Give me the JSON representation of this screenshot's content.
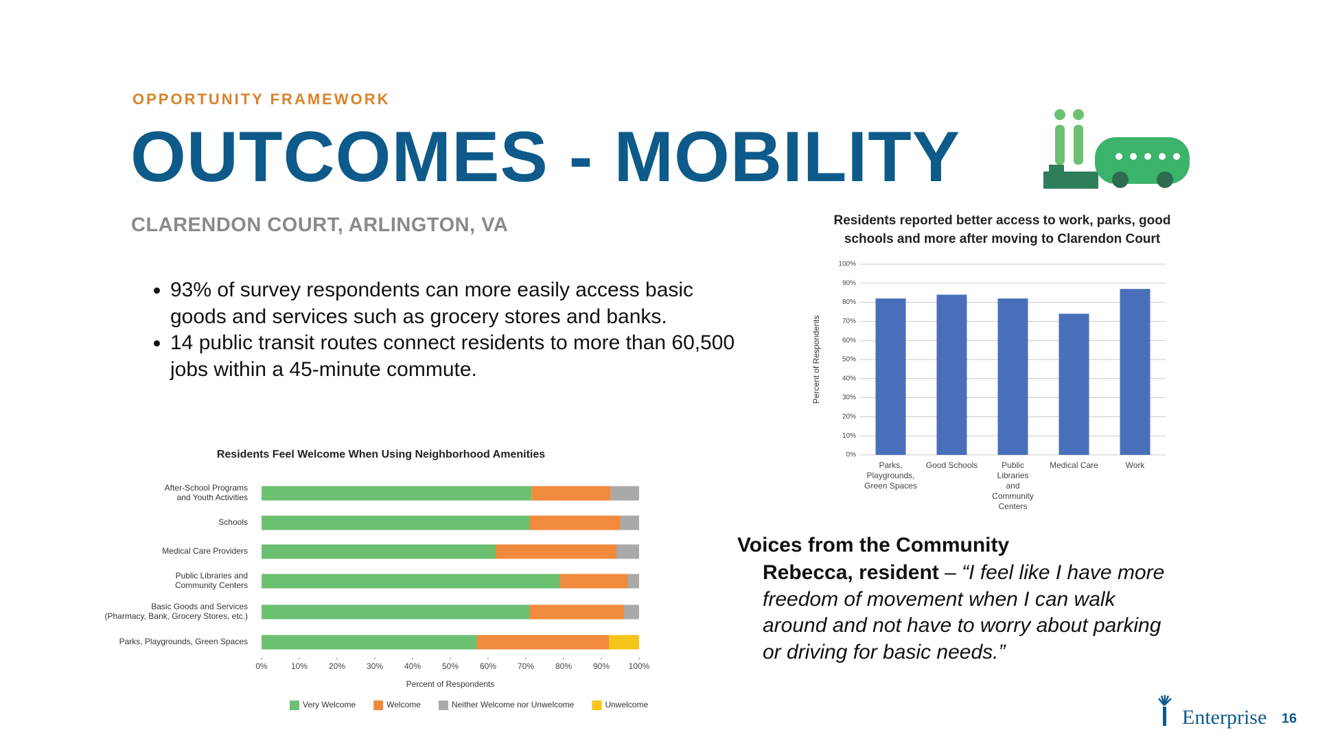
{
  "header": {
    "eyebrow": "OPPORTUNITY FRAMEWORK",
    "title": "OUTCOMES - MOBILITY",
    "subtitle": "CLARENDON COURT, ARLINGTON, VA"
  },
  "bullets": [
    "93% of survey respondents can more easily access basic goods and services such as grocery stores and banks.",
    "14 public transit routes connect residents to more than 60,500 jobs within a 45-minute commute."
  ],
  "quote": {
    "heading": "Voices from the Community",
    "speaker": "Rebecca, resident",
    "dash": "–",
    "text": "“I feel like I have more freedom of movement when I can walk around and not have to worry about parking or driving for basic needs.”"
  },
  "footer": {
    "logo": "Enterprise",
    "page": "16"
  },
  "chart_data": [
    {
      "type": "stacked_barh",
      "title": "Residents Feel Welcome When Using Neighborhood Amenities",
      "categories": [
        "After-School Programs\nand Youth Activities",
        "Schools",
        "Medical Care Providers",
        "Public Libraries and\nCommunity Centers",
        "Basic Goods and Services\n(Pharmacy, Bank, Grocery Stores, etc.)",
        "Parks, Playgrounds, Green Spaces"
      ],
      "series": [
        {
          "name": "Very Welcome",
          "color": "#6cc071",
          "values": [
            71.5,
            71,
            62,
            79,
            71,
            57
          ]
        },
        {
          "name": "Welcome",
          "color": "#f08a3c",
          "values": [
            21,
            24,
            32,
            18,
            25,
            35
          ]
        },
        {
          "name": "Neither Welcome nor Unwelcome",
          "color": "#a9a9a9",
          "values": [
            7.5,
            5,
            6,
            3,
            4,
            0
          ]
        },
        {
          "name": "Unwelcome",
          "color": "#f5c518",
          "values": [
            0,
            0,
            0,
            0,
            0,
            8
          ]
        }
      ],
      "xlim": [
        0,
        100
      ],
      "xticks": [
        {
          "value": 0,
          "label": "0%"
        },
        {
          "value": 10,
          "label": "10%"
        },
        {
          "value": 20,
          "label": "20%"
        },
        {
          "value": 30,
          "label": "30%"
        },
        {
          "value": 40,
          "label": "40%"
        },
        {
          "value": 50,
          "label": "50%"
        },
        {
          "value": 60,
          "label": "60%"
        },
        {
          "value": 70,
          "label": "70%"
        },
        {
          "value": 80,
          "label": "80%"
        },
        {
          "value": 90,
          "label": "90%"
        },
        {
          "value": 100,
          "label": "100%"
        }
      ],
      "xlabel": "Percent of Respondents",
      "legend": "bottom"
    },
    {
      "type": "bar",
      "title": "Residents reported better access to work, parks, good\nschools and more after moving to Clarendon Court",
      "categories": [
        "Parks,\nPlaygrounds,\nGreen Spaces",
        "Good Schools",
        "Public\nLibraries\nand\nCommunity\nCenters",
        "Medical Care",
        "Work"
      ],
      "values": [
        82,
        84,
        82,
        74,
        87
      ],
      "color": "#4a6fba",
      "ylim": [
        0,
        100
      ],
      "yticks": [
        {
          "value": 0,
          "label": "0%"
        },
        {
          "value": 10,
          "label": "10%"
        },
        {
          "value": 20,
          "label": "20%"
        },
        {
          "value": 30,
          "label": "30%"
        },
        {
          "value": 40,
          "label": "40%"
        },
        {
          "value": 50,
          "label": "50%"
        },
        {
          "value": 60,
          "label": "60%"
        },
        {
          "value": 70,
          "label": "70%"
        },
        {
          "value": 80,
          "label": "80%"
        },
        {
          "value": 90,
          "label": "90%"
        },
        {
          "value": 100,
          "label": "100%"
        }
      ],
      "ylabel": "Percent of Respondents",
      "grid": true
    }
  ]
}
